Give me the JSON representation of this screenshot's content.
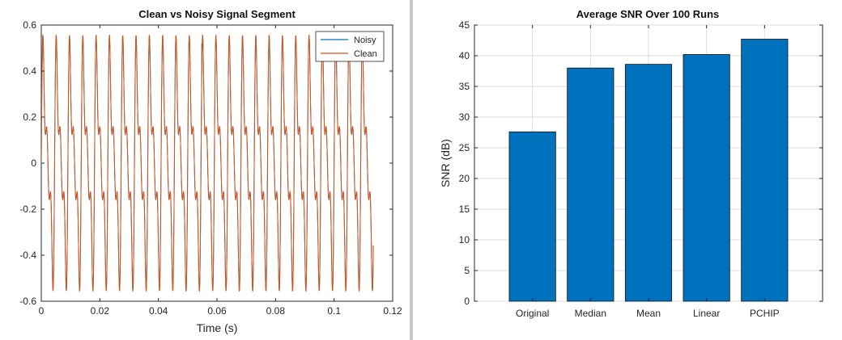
{
  "chart_data": [
    {
      "type": "line",
      "title": "Clean vs Noisy Signal Segment",
      "xlabel": "Time (s)",
      "ylabel": "",
      "xlim": [
        0,
        0.12
      ],
      "ylim": [
        -0.6,
        0.6
      ],
      "xticks": [
        "0",
        "0.02",
        "0.04",
        "0.06",
        "0.08",
        "0.1",
        "0.12"
      ],
      "yticks": [
        "-0.6",
        "-0.4",
        "-0.2",
        "0",
        "0.2",
        "0.4",
        "0.6"
      ],
      "grid": false,
      "legend": "top-right",
      "x_end": 0.1134,
      "signal": {
        "fundamental_hz": 220,
        "components": [
          {
            "harmonic": 1,
            "amplitude": 0.35
          },
          {
            "harmonic": 2,
            "amplitude": 0.2
          },
          {
            "harmonic": 3,
            "amplitude": 0.15
          }
        ]
      },
      "series": [
        {
          "name": "Noisy",
          "color": "#0072bd",
          "spikes": [
            {
              "x": 0.0548,
              "y": 0.52
            }
          ]
        },
        {
          "name": "Clean",
          "color": "#d95319"
        }
      ]
    },
    {
      "type": "bar",
      "title": "Average SNR Over 100 Runs",
      "xlabel": "",
      "ylabel": "SNR (dB)",
      "ylim": [
        0,
        45
      ],
      "yticks": [
        "0",
        "5",
        "10",
        "15",
        "20",
        "25",
        "30",
        "35",
        "40",
        "45"
      ],
      "grid": true,
      "categories": [
        "Original",
        "Median",
        "Mean",
        "Linear",
        "PCHIP"
      ],
      "values": [
        27.6,
        38.0,
        38.6,
        40.2,
        42.7
      ],
      "bar_color": "#0072bd"
    }
  ]
}
